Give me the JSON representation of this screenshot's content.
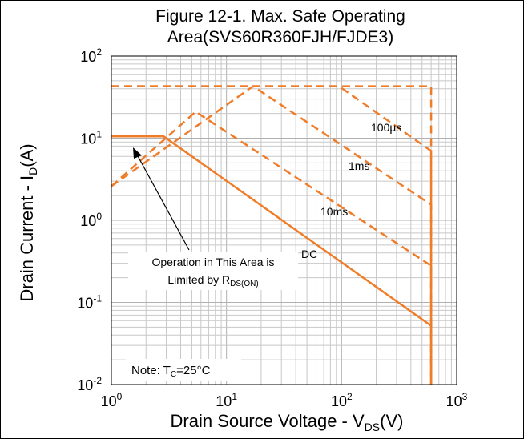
{
  "chart_data": {
    "type": "line",
    "title_lines": [
      "Figure 12-1. Max. Safe Operating",
      "Area(SVS60R360FJH/FJDE3)"
    ],
    "xlabel": {
      "main": "Drain Source Voltage - V",
      "sub": "DS",
      "tail": "(V)"
    },
    "ylabel": {
      "main": "Drain Current - I",
      "sub": "D",
      "tail": "(A)"
    },
    "x_scale": "log",
    "y_scale": "log",
    "xlim": [
      1,
      1000
    ],
    "ylim": [
      0.01,
      100
    ],
    "grid": true,
    "x_ticks": [
      {
        "base": "10",
        "exp": "0"
      },
      {
        "base": "10",
        "exp": "1"
      },
      {
        "base": "10",
        "exp": "2"
      },
      {
        "base": "10",
        "exp": "3"
      }
    ],
    "y_ticks": [
      {
        "base": "10",
        "exp": "-2"
      },
      {
        "base": "10",
        "exp": "-1"
      },
      {
        "base": "10",
        "exp": "0"
      },
      {
        "base": "10",
        "exp": "1"
      },
      {
        "base": "10",
        "exp": "2"
      }
    ],
    "color": "#f07c28",
    "series": [
      {
        "name": "DC",
        "style": "solid",
        "x": [
          1,
          2.85,
          600,
          600
        ],
        "y": [
          10.5,
          10.5,
          0.052,
          0.01
        ]
      },
      {
        "name": "10ms",
        "style": "dashed",
        "x": [
          1,
          5.4,
          600,
          600
        ],
        "y": [
          2.6,
          21,
          0.28,
          0.01
        ]
      },
      {
        "name": "1ms",
        "style": "dashed",
        "x": [
          1,
          17,
          600,
          600
        ],
        "y": [
          2.6,
          43,
          1.55,
          0.01
        ]
      },
      {
        "name": "100µs",
        "style": "dashed",
        "x": [
          1,
          95,
          600,
          600
        ],
        "y": [
          43,
          43,
          7,
          0.01
        ]
      },
      {
        "name": "",
        "style": "dashed",
        "x": [
          1,
          600,
          600
        ],
        "y": [
          43,
          43,
          0.01
        ]
      }
    ],
    "annotations": {
      "label_100us": "100µs",
      "label_1ms": "1ms",
      "label_10ms": "10ms",
      "label_dc": "DC",
      "area_line1": "Operation in This Area is",
      "area_line2_main": "Limited by R",
      "area_line2_sub": "DS(ON)",
      "note_main": "Note: T",
      "note_sub": "C",
      "note_tail": "=25°C"
    }
  }
}
